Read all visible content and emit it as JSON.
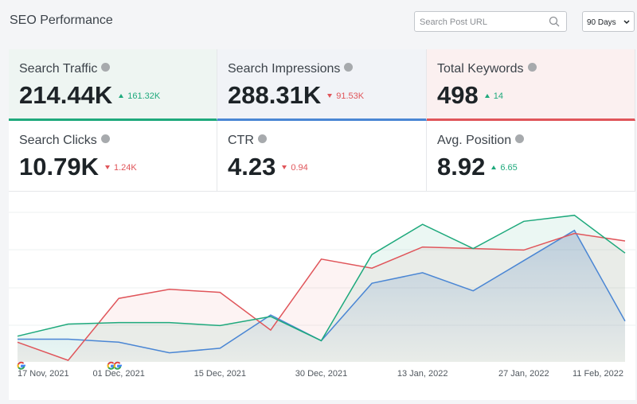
{
  "header": {
    "title": "SEO Performance",
    "search_placeholder": "Search Post URL",
    "period": "90 Days"
  },
  "metrics": [
    {
      "label": "Search Traffic",
      "value": "214.44K",
      "change": "161.32K",
      "direction": "up",
      "accent": "#1ea97c",
      "background": "#eef5f2"
    },
    {
      "label": "Search Impressions",
      "value": "288.31K",
      "change": "91.53K",
      "direction": "down",
      "accent": "#4a86d4",
      "background": "#f1f3f7"
    },
    {
      "label": "Total Keywords",
      "value": "498",
      "change": "14",
      "direction": "up",
      "accent": "#e0555a",
      "background": "#fbf0f0"
    },
    {
      "label": "Search Clicks",
      "value": "10.79K",
      "change": "1.24K",
      "direction": "down"
    },
    {
      "label": "CTR",
      "value": "4.23",
      "change": "0.94",
      "direction": "down"
    },
    {
      "label": "Avg. Position",
      "value": "8.92",
      "change": "6.65",
      "direction": "up"
    }
  ],
  "chart_data": {
    "type": "line",
    "categories": [
      "17 Nov, 2021",
      null,
      "01 Dec, 2021",
      null,
      "15 Dec, 2021",
      null,
      "30 Dec, 2021",
      null,
      "13 Jan, 2022",
      null,
      "27 Jan, 2022",
      null,
      "11 Feb, 2022"
    ],
    "ylim": [
      0,
      100
    ],
    "series": [
      {
        "color": "#4a86d4",
        "values": [
          15,
          15,
          13,
          6,
          9,
          31,
          14,
          52,
          59,
          47,
          67,
          87,
          27
        ]
      },
      {
        "color": "#e0555a",
        "values": [
          13,
          1,
          42,
          48,
          46,
          21,
          68,
          62,
          76,
          75,
          74,
          85,
          80
        ]
      },
      {
        "color": "#1ea97c",
        "values": [
          17,
          25,
          26,
          26,
          24,
          30,
          14,
          71,
          91,
          75,
          93,
          97,
          72
        ]
      }
    ]
  }
}
